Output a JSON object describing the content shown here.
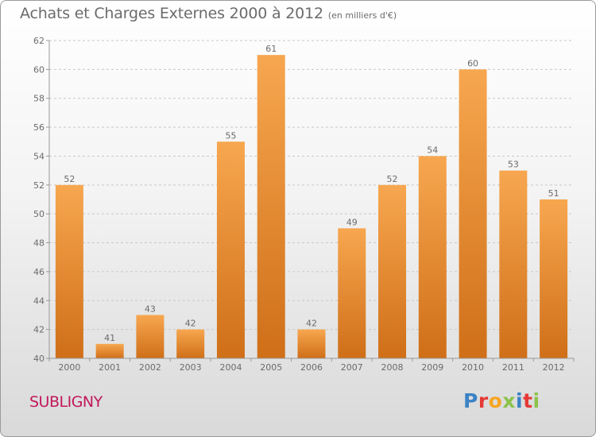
{
  "title": {
    "main": "Achats et Charges Externes 2000 à 2012",
    "unit": "(en milliers d'€)"
  },
  "town": "SUBLIGNY",
  "logo": {
    "text": "Proxiti",
    "colors": [
      "#3b82c4",
      "#e53935",
      "#f5a623",
      "#8bc34a",
      "#3b82c4",
      "#e53935",
      "#8bc34a"
    ]
  },
  "colors": {
    "bar_top": "#f7a750",
    "bar_bottom": "#cf6f18",
    "text": "#6b6b6b",
    "town": "#c2185b"
  },
  "chart_data": {
    "type": "bar",
    "title": "Achats et Charges Externes 2000 à 2012",
    "subtitle": "(en milliers d'€)",
    "categories": [
      "2000",
      "2001",
      "2002",
      "2003",
      "2004",
      "2005",
      "2006",
      "2007",
      "2008",
      "2009",
      "2010",
      "2011",
      "2012"
    ],
    "values": [
      52,
      41,
      43,
      42,
      55,
      61,
      42,
      49,
      52,
      54,
      60,
      53,
      51
    ],
    "data_labels": [
      "52",
      "41",
      "43",
      "42",
      "55",
      "61",
      "42",
      "49",
      "52",
      "54",
      "60",
      "53",
      "51"
    ],
    "ylim": [
      40,
      62
    ],
    "yticks": [
      40,
      42,
      44,
      46,
      48,
      50,
      52,
      54,
      56,
      58,
      60,
      62
    ],
    "grid": "horizontal dashed",
    "legend": "none"
  }
}
